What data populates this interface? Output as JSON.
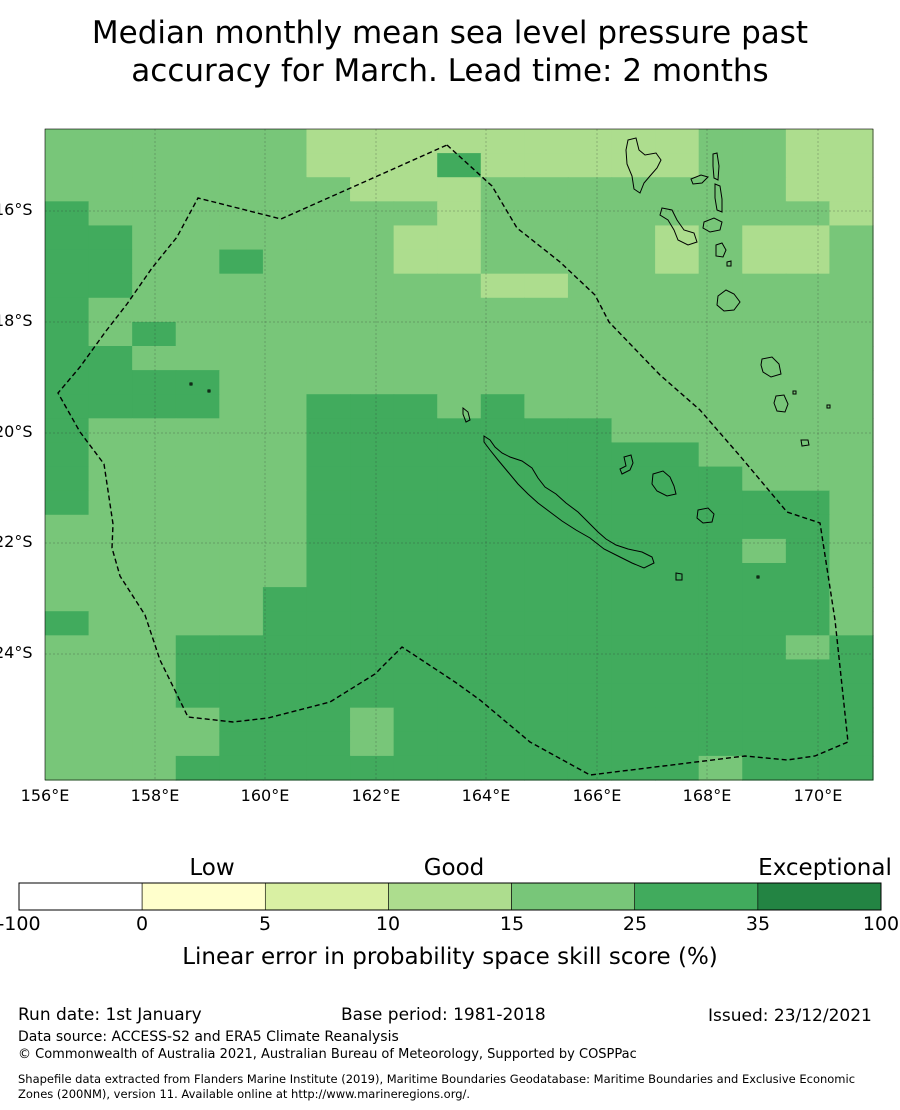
{
  "title": {
    "line1": "Median monthly mean sea level pressure past",
    "line2": "accuracy for March. Lead time: 2 months"
  },
  "map": {
    "lat_labels": [
      "16°S",
      "18°S",
      "20°S",
      "22°S",
      "24°S"
    ],
    "lon_labels": [
      "156°E",
      "158°E",
      "160°E",
      "162°E",
      "164°E",
      "166°E",
      "168°E",
      "170°E"
    ],
    "colors": {
      "c1": "#d9f0a3",
      "c2": "#addd8e",
      "c3": "#78c679",
      "c4": "#41ab5d",
      "c5": "#238443"
    },
    "grid": [
      "3333332222222223322",
      "3333332224222223322",
      "3333333222333333322",
      "4333333332333333332",
      "4433333322333323223",
      "4433433322333323223",
      "4433333333223333333",
      "4333333333333333333",
      "4343333333333333333",
      "4433333333333333333",
      "4444333333333333333",
      "4444334443433333333",
      "4333334444444333333",
      "4333334444444443333",
      "4333334444444444333",
      "4333334444444444443",
      "3333334444444444443",
      "3333334444444444343",
      "3333334444444444443",
      "3333344444444444443",
      "4333344444444444443",
      "3334444444444444434",
      "3334444444444444444",
      "3334444444444444444",
      "3333444344444444444",
      "3333444344444444444",
      "3334444444444443444"
    ]
  },
  "colorbar": {
    "categories": [
      "Low",
      "Good",
      "Exceptional"
    ],
    "ticks": [
      "-100",
      "0",
      "5",
      "10",
      "15",
      "25",
      "35",
      "100"
    ],
    "colors": [
      "#ffffff",
      "#ffffcc",
      "#d9f0a3",
      "#addd8e",
      "#78c679",
      "#41ab5d",
      "#238443"
    ],
    "label": "Linear error in probability space skill score (%)"
  },
  "footer": {
    "run_date": "Run date: 1st January",
    "base_period": "Base period: 1981-2018",
    "issued": "Issued: 23/12/2021",
    "data_source": "Data source: ACCESS-S2 and ERA5 Climate Reanalysis",
    "copyright": "© Commonwealth of Australia 2021, Australian Bureau of Meteorology, Supported by COSPPac",
    "shapefile_line1": "Shapefile data extracted from Flanders Marine Institute (2019), Maritime Boundaries Geodatabase: Maritime Boundaries and Exclusive Economic",
    "shapefile_line2": "Zones (200NM), version 11. Available online at http://www.marineregions.org/."
  }
}
